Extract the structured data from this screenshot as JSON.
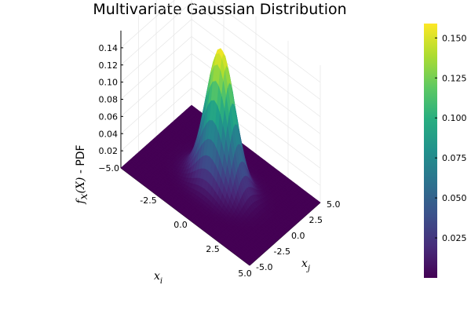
{
  "chart_data": {
    "type": "surface",
    "title": "Multivariate Gaussian Distribution",
    "xlabel": "x_i",
    "ylabel": "x_j",
    "zlabel": "f_x(X) - PDF",
    "zlabel_parts": {
      "f": "f",
      "sub": "x",
      "arg": "(X)",
      "tail": " - PDF"
    },
    "xlabel_parts": {
      "base": "x",
      "sub": "i"
    },
    "ylabel_parts": {
      "base": "x",
      "sub": "j"
    },
    "function": "bivariate standard normal (independent, unit variance)",
    "mean": [
      0,
      0
    ],
    "sigma": [
      1,
      1
    ],
    "xlim": [
      -5,
      5
    ],
    "ylim": [
      -5,
      5
    ],
    "zlim": [
      0,
      0.16
    ],
    "peak": 0.159,
    "x_ticks": [
      "-2.5",
      "0.0",
      "2.5",
      "5.0"
    ],
    "y_ticks": [
      "-5.0",
      "-2.5",
      "0.0",
      "2.5",
      "5.0"
    ],
    "z_ticks": [
      "0.02",
      "0.04",
      "0.06",
      "0.08",
      "0.10",
      "0.12",
      "0.14"
    ],
    "corner_tick_label": "−5.0",
    "colormap": "viridis",
    "colorbar": {
      "range": [
        0,
        0.159
      ],
      "ticks": [
        "0.025",
        "0.050",
        "0.075",
        "0.100",
        "0.125",
        "0.150"
      ],
      "tick_values": [
        0.025,
        0.05,
        0.075,
        0.1,
        0.125,
        0.15
      ]
    },
    "grid": true,
    "legend": "none"
  }
}
